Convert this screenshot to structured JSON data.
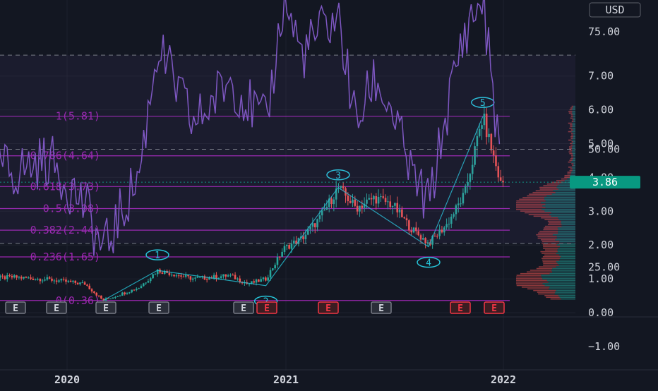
{
  "currency": "USD",
  "colors": {
    "background": "#131722",
    "grid": "#1e222d",
    "up": "#26a69a",
    "down": "#ef5350",
    "fib": "#9c27b0",
    "wave": "#26c6da",
    "rsi": "#7e57c2",
    "price_badge": "#089981",
    "earnings_past": "#787b86",
    "earnings_red": "#f23645",
    "earnings_future": "#e040fb"
  },
  "price_axis": {
    "ticks": [
      "7.00",
      "6.00",
      "5.00",
      "4.00",
      "3.00",
      "2.00",
      "1.00",
      "0.00",
      "−1.00"
    ],
    "last_price": "3.86"
  },
  "rsi_axis": {
    "ticks": [
      "75.00",
      "50.00",
      "25.00"
    ]
  },
  "time_axis": {
    "ticks": [
      "2020",
      "2021",
      "2022"
    ]
  },
  "fib_levels": [
    {
      "label": "1(5.81)",
      "value": 5.81
    },
    {
      "label": "0.786(4.64)",
      "value": 4.64
    },
    {
      "label": "0.618(3.73)",
      "value": 3.73
    },
    {
      "label": "0.5(3.08)",
      "value": 3.08
    },
    {
      "label": "0.382(2.44)",
      "value": 2.44
    },
    {
      "label": "0.236(1.65)",
      "value": 1.65
    },
    {
      "label": "0(0.36)",
      "value": 0.36
    }
  ],
  "wave_labels": [
    "1",
    "2",
    "3",
    "4",
    "5"
  ],
  "earnings_markers": [
    "E",
    "E",
    "E",
    "E",
    "E",
    "E",
    "E",
    "E",
    "E",
    "E"
  ],
  "chart_data": {
    "type": "line",
    "subtype": "candlestick price with Elliott wave, Fibonacci retracement, volume profile and RSI",
    "x_ticks": [
      "2020",
      "2021",
      "2022"
    ],
    "ylim": [
      -1,
      7.6
    ],
    "series": [
      {
        "values": [
          [
            "2019-08",
            1.0
          ],
          [
            "2019-10",
            1.05
          ],
          [
            "2019-12",
            0.98
          ],
          [
            "2020-02",
            0.85
          ],
          [
            "2020-03",
            0.36
          ],
          [
            "2020-05",
            0.75
          ],
          [
            "2020-06",
            1.25
          ],
          [
            "2020-08",
            1.0
          ],
          [
            "2020-09",
            1.05
          ],
          [
            "2020-10",
            1.1
          ],
          [
            "2020-11",
            0.85
          ],
          [
            "2020-12",
            1.0
          ],
          [
            "2021-01",
            1.9
          ],
          [
            "2021-02",
            2.2
          ],
          [
            "2021-03",
            2.8
          ],
          [
            "2021-04",
            3.7
          ],
          [
            "2021-05",
            3.1
          ],
          [
            "2021-06",
            3.4
          ],
          [
            "2021-07",
            3.2
          ],
          [
            "2021-08",
            2.5
          ],
          [
            "2021-09",
            2.05
          ],
          [
            "2021-10",
            2.6
          ],
          [
            "2021-11",
            3.5
          ],
          [
            "2021-12",
            5.8
          ],
          [
            "2022-01",
            3.8
          ],
          [
            "2022-01",
            3.86
          ]
        ]
      }
    ],
    "wave_points": [
      {
        "label": "1",
        "x": "2020-06",
        "y": 1.25
      },
      {
        "label": "2",
        "x": "2020-12",
        "y": 0.8
      },
      {
        "label": "3",
        "x": "2021-04",
        "y": 3.7
      },
      {
        "label": "4",
        "x": "2021-09",
        "y": 1.95
      },
      {
        "label": "5",
        "x": "2021-12",
        "y": 5.8
      }
    ],
    "rsi": {
      "ylim": [
        20,
        85
      ],
      "levels": [
        70,
        50,
        30
      ],
      "values": [
        [
          "2019-08",
          50
        ],
        [
          "2019-10",
          45
        ],
        [
          "2019-12",
          48
        ],
        [
          "2020-02",
          38
        ],
        [
          "2020-03",
          28
        ],
        [
          "2020-05",
          45
        ],
        [
          "2020-06",
          72
        ],
        [
          "2020-08",
          55
        ],
        [
          "2020-10",
          65
        ],
        [
          "2020-12",
          55
        ],
        [
          "2021-01",
          82
        ],
        [
          "2021-02",
          70
        ],
        [
          "2021-03",
          75
        ],
        [
          "2021-04",
          78
        ],
        [
          "2021-05",
          55
        ],
        [
          "2021-06",
          65
        ],
        [
          "2021-07",
          58
        ],
        [
          "2021-08",
          45
        ],
        [
          "2021-09",
          38
        ],
        [
          "2021-10",
          58
        ],
        [
          "2021-11",
          75
        ],
        [
          "2021-12",
          82
        ],
        [
          "2022-01",
          47
        ],
        [
          "2022-01",
          52
        ]
      ]
    }
  }
}
